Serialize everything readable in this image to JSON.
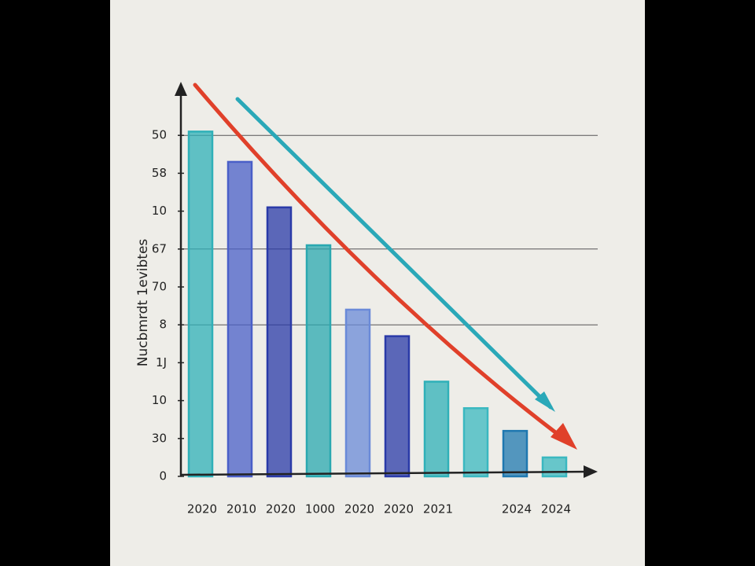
{
  "chart_data": {
    "type": "bar",
    "y_label": "Nucbmrdt 1evibtes",
    "categories": [
      "2020",
      "2010",
      "2020",
      "1000",
      "2020",
      "2020",
      "2021",
      null,
      "2024",
      "2024"
    ],
    "values": [
      9.1,
      8.3,
      7.1,
      6.1,
      4.4,
      3.7,
      2.5,
      1.8,
      1.2,
      0.5
    ],
    "colors": [
      "#2fb0b8",
      "#4a5fc8",
      "#2a3aa8",
      "#2aa8b0",
      "#6a8ad8",
      "#2a3aa8",
      "#2fb0b8",
      "#3ab8c0",
      "#1f78b0",
      "#3ab8c0"
    ],
    "ylim": [
      0,
      10
    ],
    "yticks": [
      0,
      {
        "value": 1,
        "label": "30"
      },
      {
        "value": 2,
        "label": "10"
      },
      {
        "value": 3,
        "label": "1J"
      },
      {
        "value": 4,
        "label": "8"
      },
      {
        "value": 5,
        "label": "70"
      },
      {
        "value": 6,
        "label": "67"
      },
      {
        "value": 7,
        "label": "10"
      },
      {
        "value": 8,
        "label": "58"
      },
      {
        "value": 9,
        "label": "50"
      }
    ],
    "grid_lines": [
      9,
      6,
      4
    ]
  }
}
